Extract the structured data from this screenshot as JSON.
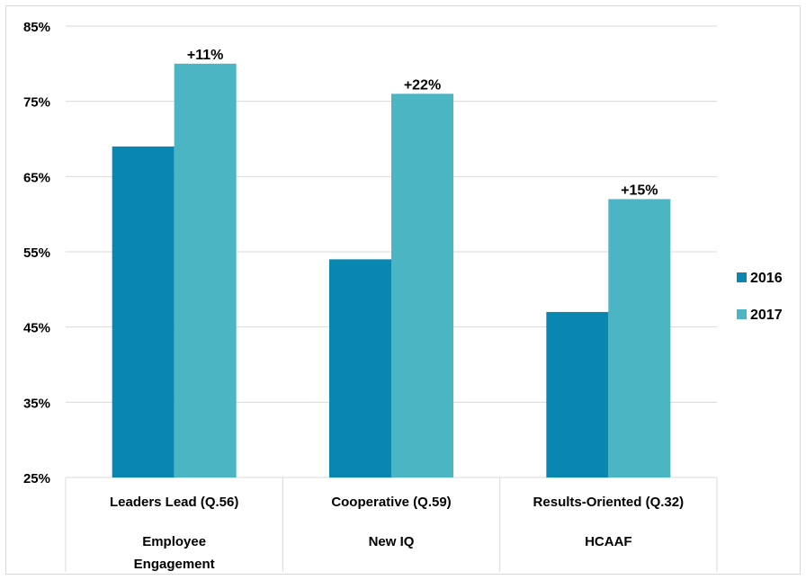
{
  "chart_data": {
    "type": "bar",
    "title": "",
    "xlabel": "",
    "ylabel": "",
    "ylim": [
      25,
      85
    ],
    "y_ticks": [
      25,
      35,
      45,
      55,
      65,
      75,
      85
    ],
    "y_tick_suffix": "%",
    "grid": true,
    "legend_position": "right",
    "categories": [
      "Leaders Lead (Q.56)",
      "Cooperative (Q.59)",
      "Results-Oriented (Q.32)"
    ],
    "category_groups": [
      [
        "Employee",
        "Engagement"
      ],
      [
        "New IQ"
      ],
      [
        "HCAAF"
      ]
    ],
    "series": [
      {
        "name": "2016",
        "color": "#0a87b0",
        "values": [
          69,
          54,
          47
        ]
      },
      {
        "name": "2017",
        "color": "#4bb5c4",
        "values": [
          80,
          76,
          62
        ]
      }
    ],
    "annotations": [
      "+11%",
      "+22%",
      "+15%"
    ]
  }
}
